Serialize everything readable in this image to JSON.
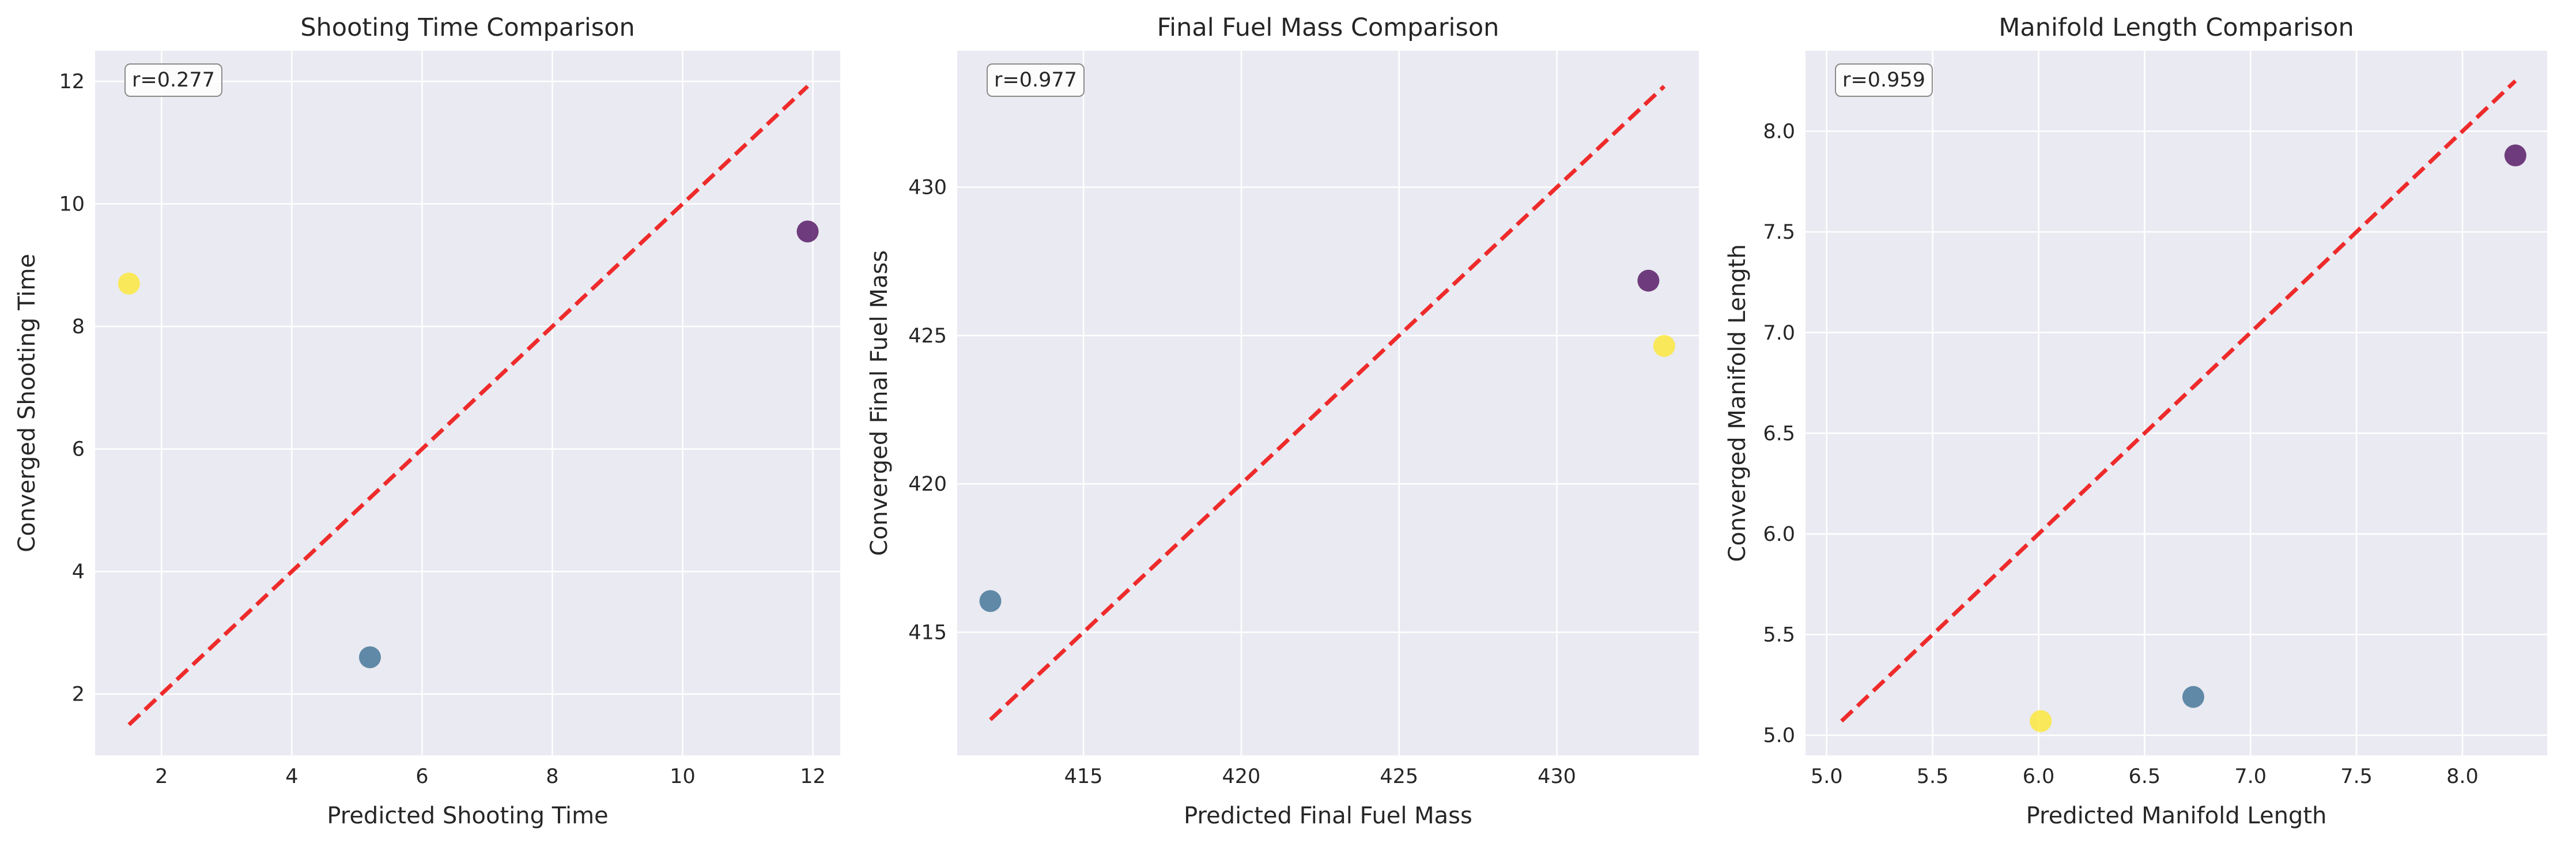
{
  "chart_data": [
    {
      "type": "scatter",
      "title": "Shooting Time Comparison",
      "xlabel": "Predicted Shooting Time",
      "ylabel": "Converged Shooting Time",
      "xlim": [
        0.98,
        12.42
      ],
      "ylim": [
        1.0,
        12.5
      ],
      "xticks": [
        2,
        4,
        6,
        8,
        10,
        12
      ],
      "yticks": [
        2,
        4,
        6,
        8,
        10,
        12
      ],
      "points": [
        {
          "x": 11.92,
          "y": 9.55,
          "color": "#440154"
        },
        {
          "x": 5.2,
          "y": 2.6,
          "color": "#31688e"
        },
        {
          "x": 1.5,
          "y": 8.7,
          "color": "#fde725"
        }
      ],
      "diagonal": [
        1.5,
        11.92
      ],
      "annotation": "r=0.277",
      "grid": true
    },
    {
      "type": "scatter",
      "title": "Final Fuel Mass Comparison",
      "xlabel": "Predicted Final Fuel Mass",
      "ylabel": "Converged Final Fuel Mass",
      "xlim": [
        411.0,
        434.5
      ],
      "ylim": [
        410.85,
        434.6
      ],
      "xticks": [
        415,
        420,
        425,
        430
      ],
      "yticks": [
        415,
        420,
        425,
        430
      ],
      "points": [
        {
          "x": 432.9,
          "y": 426.85,
          "color": "#440154"
        },
        {
          "x": 412.05,
          "y": 416.05,
          "color": "#31688e"
        },
        {
          "x": 433.4,
          "y": 424.65,
          "color": "#fde725"
        }
      ],
      "diagonal": [
        412.05,
        433.4
      ],
      "annotation": "r=0.977",
      "grid": true
    },
    {
      "type": "scatter",
      "title": "Manifold Length Comparison",
      "xlabel": "Predicted Manifold Length",
      "ylabel": "Converged Manifold Length",
      "xlim": [
        4.9,
        8.4
      ],
      "ylim": [
        4.9,
        8.4
      ],
      "xticks": [
        5.0,
        5.5,
        6.0,
        6.5,
        7.0,
        7.5,
        8.0
      ],
      "yticks": [
        5.0,
        5.5,
        6.0,
        6.5,
        7.0,
        7.5,
        8.0
      ],
      "points": [
        {
          "x": 8.25,
          "y": 7.88,
          "color": "#440154"
        },
        {
          "x": 6.73,
          "y": 5.19,
          "color": "#31688e"
        },
        {
          "x": 6.01,
          "y": 5.07,
          "color": "#fde725"
        }
      ],
      "diagonal": [
        5.07,
        8.25
      ],
      "annotation": "r=0.959",
      "grid": true
    }
  ],
  "colors": {
    "axes_bg": "#eaeaf2",
    "grid": "#ffffff",
    "diagonal": "#ee2b2b"
  }
}
